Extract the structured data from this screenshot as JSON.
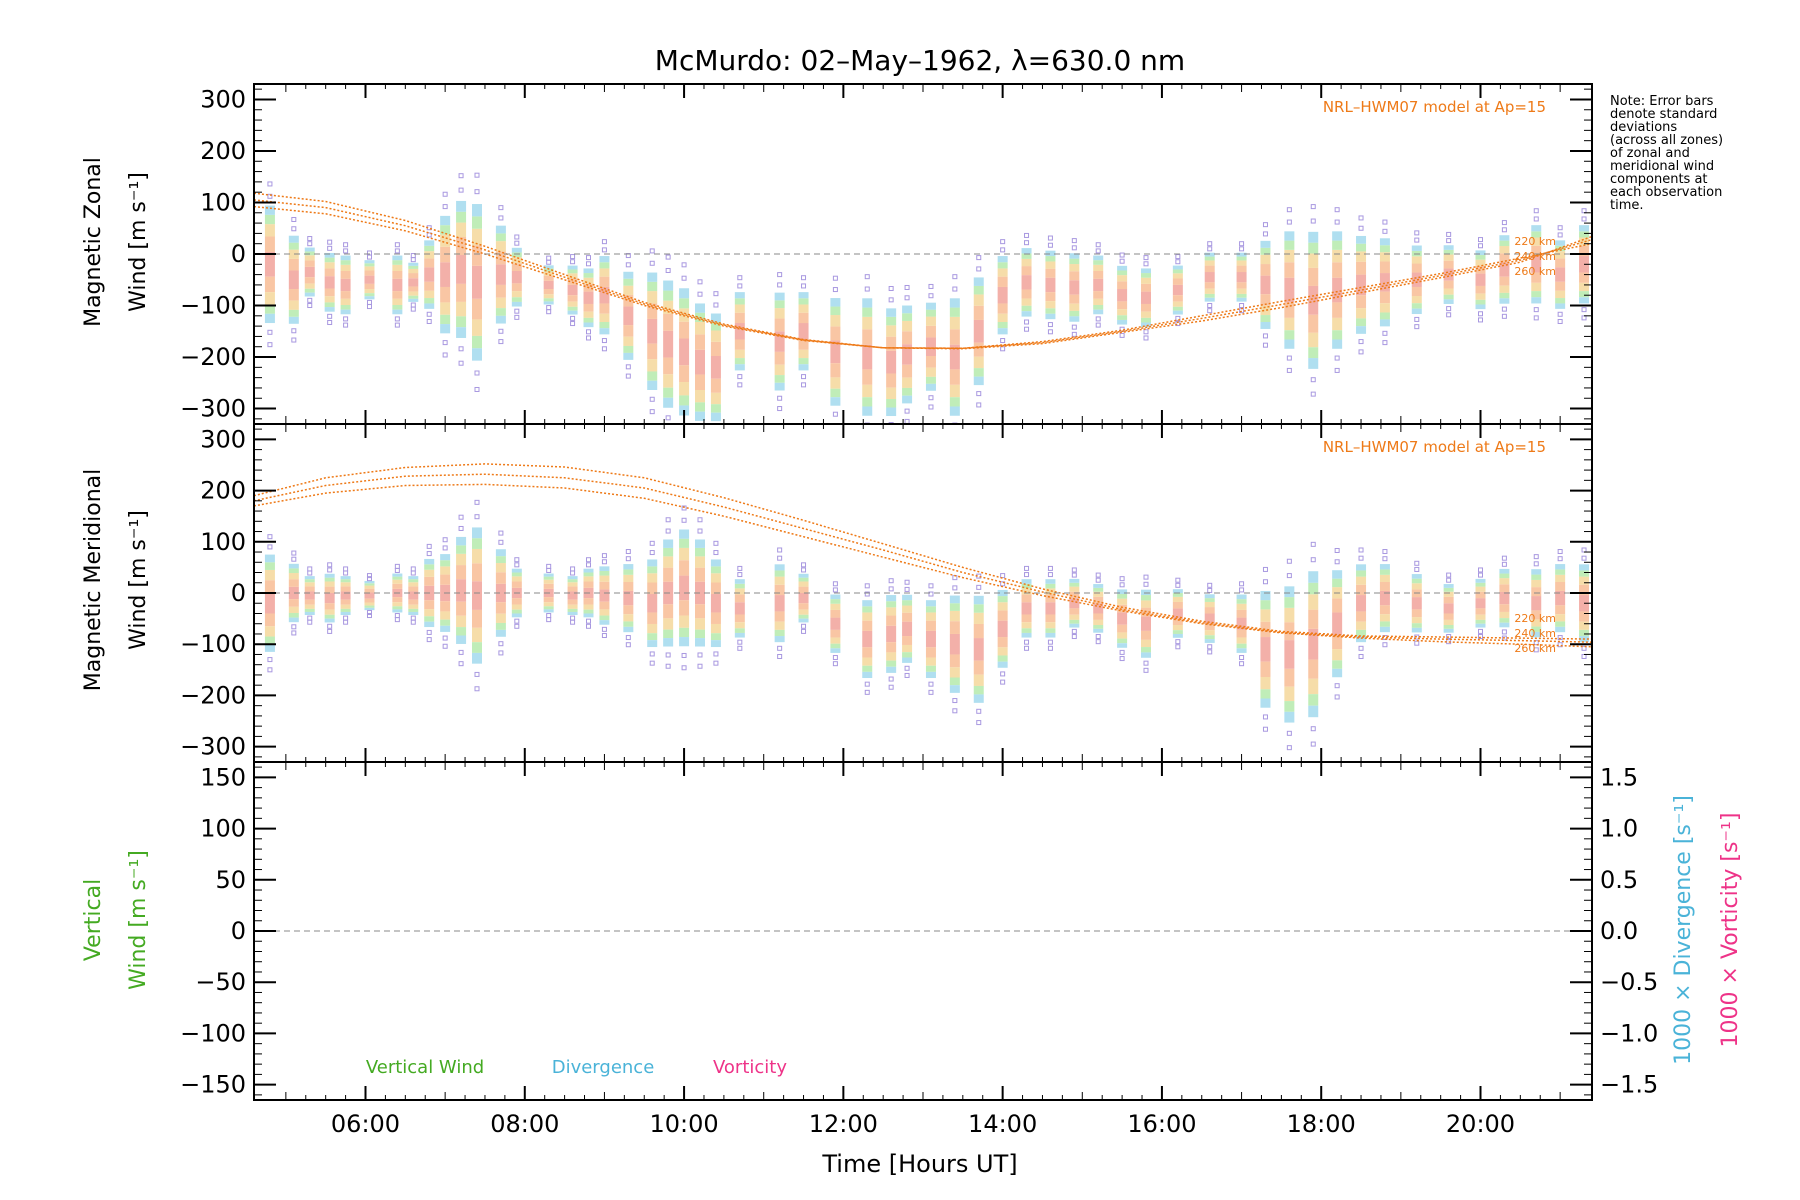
{
  "title": "McMurdo: 02–May–1962, λ=630.0 nm",
  "x_axis": {
    "label": "Time [Hours UT]",
    "range_hours": [
      4.6,
      21.4
    ],
    "ticks": [
      {
        "value": 6,
        "label": "06:00"
      },
      {
        "value": 8,
        "label": "08:00"
      },
      {
        "value": 10,
        "label": "10:00"
      },
      {
        "value": 12,
        "label": "12:00"
      },
      {
        "value": 14,
        "label": "14:00"
      },
      {
        "value": 16,
        "label": "16:00"
      },
      {
        "value": 18,
        "label": "18:00"
      },
      {
        "value": 20,
        "label": "20:00"
      }
    ]
  },
  "note_lines": [
    "Note: Error bars",
    "denote standard",
    "deviations",
    "(across all zones)",
    "of zonal and",
    "meridional wind",
    "components at",
    "each observation",
    "time."
  ],
  "model_label": "NRL–HWM07 model at Ap=15",
  "altitude_labels": [
    "220 km",
    "240 km",
    "260 km"
  ],
  "colors": {
    "model": "#ee7a18",
    "vertical": "#44aa22",
    "divergence": "#4ab3d8",
    "vorticity": "#ee3388",
    "data_palette": [
      "#f2a7a0",
      "#f8c09a",
      "#f5d9a0",
      "#b9ebb0",
      "#a7dcee",
      "#c7b3ea"
    ],
    "outlier": "#a898e0"
  },
  "panels": {
    "zonal": {
      "ylabel_line1": "Magnetic Zonal",
      "ylabel_line2": "Wind [m s⁻¹]",
      "yrange": [
        -330,
        330
      ],
      "yticks": [
        300,
        200,
        100,
        0,
        -100,
        -200,
        -300
      ]
    },
    "meridional": {
      "ylabel_line1": "Magnetic Meridional",
      "ylabel_line2": "Wind [m s⁻¹]",
      "yrange": [
        -330,
        330
      ],
      "yticks": [
        300,
        200,
        100,
        0,
        -100,
        -200,
        -300
      ]
    },
    "vertical": {
      "ylabel_line1": "Vertical",
      "ylabel_line2": "Wind [m s⁻¹]",
      "yrange": [
        -165,
        165
      ],
      "yticks": [
        150,
        100,
        50,
        0,
        -50,
        -100,
        -150
      ],
      "right_axis": {
        "range": [
          -1.65,
          1.65
        ],
        "ticks": [
          {
            "value": 1.5,
            "label": "1.5"
          },
          {
            "value": 1.0,
            "label": "1.0"
          },
          {
            "value": 0.5,
            "label": "0.5"
          },
          {
            "value": 0.0,
            "label": "0.0"
          },
          {
            "value": -0.5,
            "label": "−0.5"
          },
          {
            "value": -1.0,
            "label": "−1.0"
          },
          {
            "value": -1.5,
            "label": "−1.5"
          }
        ],
        "label_divergence": "1000 × Divergence [s⁻¹]",
        "label_vorticity": "1000 × Vorticity [s⁻¹]"
      },
      "legend": [
        "Vertical Wind",
        "Divergence",
        "Vorticity"
      ]
    }
  },
  "chart_data": [
    {
      "type": "scatter",
      "panel": "zonal",
      "ylabel": "Magnetic Zonal Wind [m s⁻¹]",
      "xlabel": "Time [Hours UT]",
      "ylim": [
        -330,
        330
      ],
      "model_series": [
        {
          "name": "220 km",
          "x": [
            4.6,
            5.5,
            6.5,
            7.5,
            8.5,
            9.5,
            10.5,
            11.5,
            12.5,
            13.5,
            14.5,
            15.5,
            16.5,
            17.5,
            18.5,
            19.5,
            20.5,
            21.4
          ],
          "y": [
            92,
            78,
            45,
            0,
            -50,
            -100,
            -140,
            -168,
            -182,
            -183,
            -170,
            -148,
            -120,
            -92,
            -65,
            -38,
            -8,
            20
          ]
        },
        {
          "name": "240 km",
          "x": [
            4.6,
            5.5,
            6.5,
            7.5,
            8.5,
            9.5,
            10.5,
            11.5,
            12.5,
            13.5,
            14.5,
            15.5,
            16.5,
            17.5,
            18.5,
            19.5,
            20.5,
            21.4
          ],
          "y": [
            105,
            90,
            55,
            8,
            -45,
            -97,
            -138,
            -167,
            -182,
            -183,
            -172,
            -150,
            -125,
            -98,
            -70,
            -42,
            -12,
            28
          ]
        },
        {
          "name": "260 km",
          "x": [
            4.6,
            5.5,
            6.5,
            7.5,
            8.5,
            9.5,
            10.5,
            11.5,
            12.5,
            13.5,
            14.5,
            15.5,
            16.5,
            17.5,
            18.5,
            19.5,
            20.5,
            21.4
          ],
          "y": [
            118,
            102,
            65,
            15,
            -40,
            -94,
            -136,
            -166,
            -182,
            -184,
            -174,
            -152,
            -130,
            -104,
            -75,
            -46,
            -16,
            34
          ]
        }
      ],
      "observations": [
        {
          "t": 4.8,
          "mean": -20,
          "sd": 60
        },
        {
          "t": 5.1,
          "mean": -50,
          "sd": 45
        },
        {
          "t": 5.3,
          "mean": -35,
          "sd": 25
        },
        {
          "t": 5.55,
          "mean": -55,
          "sd": 30
        },
        {
          "t": 5.75,
          "mean": -60,
          "sd": 30
        },
        {
          "t": 6.05,
          "mean": -50,
          "sd": 20
        },
        {
          "t": 6.4,
          "mean": -60,
          "sd": 30
        },
        {
          "t": 6.6,
          "mean": -55,
          "sd": 20
        },
        {
          "t": 6.8,
          "mean": -40,
          "sd": 35
        },
        {
          "t": 7.0,
          "mean": -40,
          "sd": 60
        },
        {
          "t": 7.2,
          "mean": -30,
          "sd": 70
        },
        {
          "t": 7.4,
          "mean": -55,
          "sd": 80
        },
        {
          "t": 7.7,
          "mean": -40,
          "sd": 50
        },
        {
          "t": 7.9,
          "mean": -45,
          "sd": 30
        },
        {
          "t": 8.3,
          "mean": -60,
          "sd": 20
        },
        {
          "t": 8.6,
          "mean": -70,
          "sd": 25
        },
        {
          "t": 8.8,
          "mean": -85,
          "sd": 30
        },
        {
          "t": 9.0,
          "mean": -80,
          "sd": 40
        },
        {
          "t": 9.3,
          "mean": -120,
          "sd": 45
        },
        {
          "t": 9.6,
          "mean": -150,
          "sd": 60
        },
        {
          "t": 9.8,
          "mean": -175,
          "sd": 65
        },
        {
          "t": 10.0,
          "mean": -190,
          "sd": 65
        },
        {
          "t": 10.2,
          "mean": -210,
          "sd": 60
        },
        {
          "t": 10.4,
          "mean": -220,
          "sd": 55
        },
        {
          "t": 10.7,
          "mean": -150,
          "sd": 40
        },
        {
          "t": 11.2,
          "mean": -170,
          "sd": 50
        },
        {
          "t": 11.5,
          "mean": -150,
          "sd": 40
        },
        {
          "t": 11.9,
          "mean": -190,
          "sd": 55
        },
        {
          "t": 12.3,
          "mean": -200,
          "sd": 60
        },
        {
          "t": 12.6,
          "mean": -210,
          "sd": 55
        },
        {
          "t": 12.8,
          "mean": -195,
          "sd": 50
        },
        {
          "t": 13.1,
          "mean": -180,
          "sd": 45
        },
        {
          "t": 13.4,
          "mean": -200,
          "sd": 60
        },
        {
          "t": 13.7,
          "mean": -150,
          "sd": 55
        },
        {
          "t": 14.0,
          "mean": -80,
          "sd": 40
        },
        {
          "t": 14.3,
          "mean": -55,
          "sd": 35
        },
        {
          "t": 14.6,
          "mean": -60,
          "sd": 35
        },
        {
          "t": 14.9,
          "mean": -65,
          "sd": 35
        },
        {
          "t": 15.2,
          "mean": -60,
          "sd": 30
        },
        {
          "t": 15.5,
          "mean": -80,
          "sd": 30
        },
        {
          "t": 15.8,
          "mean": -85,
          "sd": 30
        },
        {
          "t": 16.2,
          "mean": -70,
          "sd": 25
        },
        {
          "t": 16.6,
          "mean": -45,
          "sd": 25
        },
        {
          "t": 17.0,
          "mean": -45,
          "sd": 25
        },
        {
          "t": 17.3,
          "mean": -60,
          "sd": 45
        },
        {
          "t": 17.6,
          "mean": -70,
          "sd": 60
        },
        {
          "t": 17.9,
          "mean": -90,
          "sd": 70
        },
        {
          "t": 18.2,
          "mean": -70,
          "sd": 60
        },
        {
          "t": 18.5,
          "mean": -60,
          "sd": 50
        },
        {
          "t": 18.8,
          "mean": -55,
          "sd": 45
        },
        {
          "t": 19.2,
          "mean": -50,
          "sd": 35
        },
        {
          "t": 19.6,
          "mean": -40,
          "sd": 30
        },
        {
          "t": 20.0,
          "mean": -50,
          "sd": 30
        },
        {
          "t": 20.3,
          "mean": -30,
          "sd": 35
        },
        {
          "t": 20.7,
          "mean": -20,
          "sd": 40
        },
        {
          "t": 21.0,
          "mean": -40,
          "sd": 35
        },
        {
          "t": 21.3,
          "mean": -20,
          "sd": 40
        }
      ]
    },
    {
      "type": "scatter",
      "panel": "meridional",
      "ylabel": "Magnetic Meridional Wind [m s⁻¹]",
      "xlabel": "Time [Hours UT]",
      "ylim": [
        -330,
        330
      ],
      "model_series": [
        {
          "name": "220 km",
          "x": [
            4.6,
            5.5,
            6.5,
            7.5,
            8.5,
            9.5,
            10.5,
            11.5,
            12.5,
            13.5,
            14.5,
            15.5,
            16.5,
            17.5,
            18.5,
            19.5,
            20.5,
            21.4
          ],
          "y": [
            170,
            195,
            210,
            212,
            205,
            185,
            150,
            110,
            70,
            30,
            -5,
            -35,
            -60,
            -78,
            -88,
            -95,
            -100,
            -105
          ]
        },
        {
          "name": "240 km",
          "x": [
            4.6,
            5.5,
            6.5,
            7.5,
            8.5,
            9.5,
            10.5,
            11.5,
            12.5,
            13.5,
            14.5,
            15.5,
            16.5,
            17.5,
            18.5,
            19.5,
            20.5,
            21.4
          ],
          "y": [
            180,
            210,
            228,
            232,
            225,
            205,
            168,
            126,
            84,
            40,
            2,
            -32,
            -58,
            -77,
            -86,
            -90,
            -93,
            -96
          ]
        },
        {
          "name": "260 km",
          "x": [
            4.6,
            5.5,
            6.5,
            7.5,
            8.5,
            9.5,
            10.5,
            11.5,
            12.5,
            13.5,
            14.5,
            15.5,
            16.5,
            17.5,
            18.5,
            19.5,
            20.5,
            21.4
          ],
          "y": [
            190,
            225,
            245,
            252,
            246,
            225,
            186,
            142,
            96,
            50,
            8,
            -28,
            -55,
            -75,
            -84,
            -86,
            -88,
            -90
          ]
        }
      ],
      "observations": [
        {
          "t": 4.8,
          "mean": -20,
          "sd": 50
        },
        {
          "t": 5.1,
          "mean": 0,
          "sd": 30
        },
        {
          "t": 5.3,
          "mean": -5,
          "sd": 20
        },
        {
          "t": 5.55,
          "mean": -10,
          "sd": 25
        },
        {
          "t": 5.75,
          "mean": -5,
          "sd": 20
        },
        {
          "t": 6.05,
          "mean": -5,
          "sd": 15
        },
        {
          "t": 6.4,
          "mean": 0,
          "sd": 20
        },
        {
          "t": 6.6,
          "mean": -5,
          "sd": 20
        },
        {
          "t": 6.8,
          "mean": 0,
          "sd": 35
        },
        {
          "t": 7.0,
          "mean": 0,
          "sd": 40
        },
        {
          "t": 7.2,
          "mean": 5,
          "sd": 55
        },
        {
          "t": 7.4,
          "mean": -5,
          "sd": 70
        },
        {
          "t": 7.7,
          "mean": 0,
          "sd": 45
        },
        {
          "t": 7.9,
          "mean": 0,
          "sd": 25
        },
        {
          "t": 8.3,
          "mean": 0,
          "sd": 20
        },
        {
          "t": 8.6,
          "mean": -5,
          "sd": 20
        },
        {
          "t": 8.8,
          "mean": 0,
          "sd": 25
        },
        {
          "t": 9.0,
          "mean": -5,
          "sd": 30
        },
        {
          "t": 9.3,
          "mean": -10,
          "sd": 35
        },
        {
          "t": 9.6,
          "mean": -20,
          "sd": 45
        },
        {
          "t": 9.8,
          "mean": 0,
          "sd": 55
        },
        {
          "t": 10.0,
          "mean": 10,
          "sd": 60
        },
        {
          "t": 10.2,
          "mean": 0,
          "sd": 55
        },
        {
          "t": 10.4,
          "mean": -20,
          "sd": 45
        },
        {
          "t": 10.7,
          "mean": -30,
          "sd": 30
        },
        {
          "t": 11.2,
          "mean": -20,
          "sd": 40
        },
        {
          "t": 11.5,
          "mean": -10,
          "sd": 25
        },
        {
          "t": 11.9,
          "mean": -60,
          "sd": 30
        },
        {
          "t": 12.3,
          "mean": -90,
          "sd": 40
        },
        {
          "t": 12.6,
          "mean": -80,
          "sd": 40
        },
        {
          "t": 12.8,
          "mean": -70,
          "sd": 35
        },
        {
          "t": 13.1,
          "mean": -90,
          "sd": 40
        },
        {
          "t": 13.4,
          "mean": -100,
          "sd": 50
        },
        {
          "t": 13.7,
          "mean": -110,
          "sd": 55
        },
        {
          "t": 14.0,
          "mean": -70,
          "sd": 40
        },
        {
          "t": 14.3,
          "mean": -30,
          "sd": 30
        },
        {
          "t": 14.6,
          "mean": -30,
          "sd": 30
        },
        {
          "t": 14.9,
          "mean": -20,
          "sd": 25
        },
        {
          "t": 15.2,
          "mean": -30,
          "sd": 25
        },
        {
          "t": 15.5,
          "mean": -50,
          "sd": 30
        },
        {
          "t": 15.8,
          "mean": -60,
          "sd": 35
        },
        {
          "t": 16.2,
          "mean": -40,
          "sd": 25
        },
        {
          "t": 16.6,
          "mean": -50,
          "sd": 25
        },
        {
          "t": 17.0,
          "mean": -60,
          "sd": 30
        },
        {
          "t": 17.3,
          "mean": -110,
          "sd": 60
        },
        {
          "t": 17.6,
          "mean": -120,
          "sd": 70
        },
        {
          "t": 17.9,
          "mean": -100,
          "sd": 75
        },
        {
          "t": 18.2,
          "mean": -60,
          "sd": 55
        },
        {
          "t": 18.5,
          "mean": -20,
          "sd": 40
        },
        {
          "t": 18.8,
          "mean": -10,
          "sd": 35
        },
        {
          "t": 19.2,
          "mean": -20,
          "sd": 30
        },
        {
          "t": 19.6,
          "mean": -30,
          "sd": 25
        },
        {
          "t": 20.0,
          "mean": -20,
          "sd": 25
        },
        {
          "t": 20.3,
          "mean": -10,
          "sd": 30
        },
        {
          "t": 20.7,
          "mean": -20,
          "sd": 35
        },
        {
          "t": 21.0,
          "mean": -10,
          "sd": 35
        },
        {
          "t": 21.3,
          "mean": -20,
          "sd": 40
        }
      ]
    },
    {
      "type": "line",
      "panel": "vertical",
      "ylabel": "Vertical Wind [m s⁻¹]",
      "xlabel": "Time [Hours UT]",
      "ylim": [
        -165,
        165
      ],
      "series": [
        {
          "name": "Vertical Wind",
          "values": []
        },
        {
          "name": "Divergence",
          "values": []
        },
        {
          "name": "Vorticity",
          "values": []
        }
      ]
    }
  ]
}
